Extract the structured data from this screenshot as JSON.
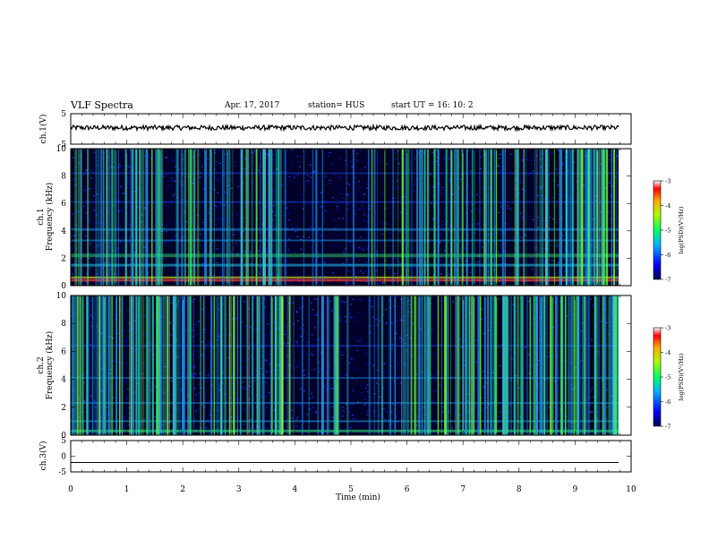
{
  "header": {
    "title": "VLF Spectra",
    "date": "Apr. 17, 2017",
    "station": "station= HUS",
    "start": "start UT = 16: 10: 2"
  },
  "chart_data": [
    {
      "type": "line",
      "panel": "ch1-waveform",
      "ylabel": "ch.1(V)",
      "ylim": [
        -5,
        5
      ],
      "yticks": [
        "5",
        "-5"
      ],
      "xlim": [
        0,
        10
      ],
      "description": "noise waveform centered near +0.5 V",
      "color": "#000000"
    },
    {
      "type": "heatmap",
      "panel": "ch1-spectrogram",
      "ylabel_top": "ch.1",
      "ylabel": "Frequency (kHz)",
      "ylim": [
        0,
        10
      ],
      "yticks": [
        "0",
        "2",
        "4",
        "6",
        "8",
        "10"
      ],
      "xlim": [
        0,
        10
      ],
      "colorbar": {
        "label": "log(PSD)(V²/Hz)",
        "range": [
          -7,
          -3
        ],
        "ticks": [
          "-3",
          "-4",
          "-5",
          "-6",
          "-7"
        ]
      }
    },
    {
      "type": "heatmap",
      "panel": "ch2-spectrogram",
      "ylabel_top": "ch.2",
      "ylabel": "Frequency (kHz)",
      "ylim": [
        0,
        10
      ],
      "yticks": [
        "0",
        "2",
        "4",
        "6",
        "8",
        "10"
      ],
      "xlim": [
        0,
        10
      ],
      "colorbar": {
        "label": "log(PSD)(V²/Hz)",
        "range": [
          -7,
          -3
        ],
        "ticks": [
          "-3",
          "-4",
          "-5",
          "-6",
          "-7"
        ]
      }
    },
    {
      "type": "line",
      "panel": "ch3-waveform",
      "ylabel": "ch.3(V)",
      "ylim": [
        -5,
        5
      ],
      "yticks": [
        "5",
        "0",
        "-5"
      ],
      "xlim": [
        0,
        10
      ],
      "description": "flat line near -2 V",
      "color": "#000000"
    }
  ],
  "xaxis": {
    "label": "Time (min)",
    "ticks": [
      "0",
      "1",
      "2",
      "3",
      "4",
      "5",
      "6",
      "7",
      "8",
      "9",
      "10"
    ]
  },
  "colors": {
    "background": "#00002a",
    "low": "#0000cc",
    "mid": "#22b2e8",
    "high": "#33ff77"
  }
}
